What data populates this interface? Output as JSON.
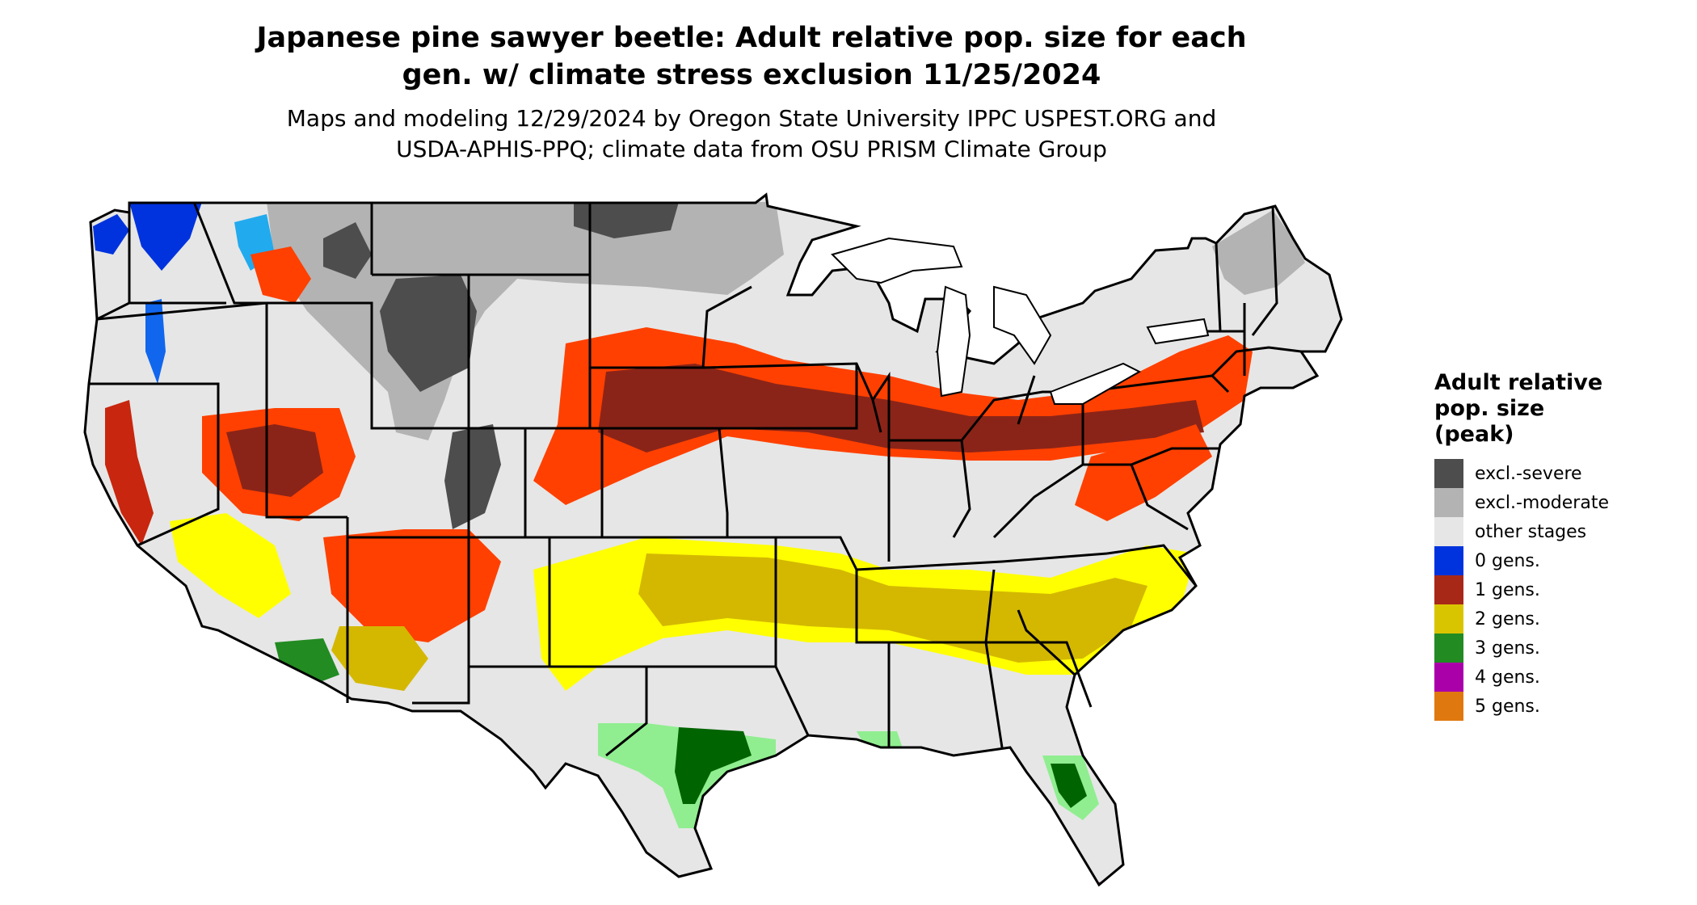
{
  "title": {
    "line1": "Japanese pine sawyer beetle: Adult relative pop. size for each",
    "line2": "gen. w/ climate stress exclusion 11/25/2024"
  },
  "subtitle": {
    "line1": "Maps and modeling 12/29/2024 by Oregon State University IPPC USPEST.ORG and",
    "line2": "USDA-APHIS-PPQ; climate data from OSU PRISM Climate Group"
  },
  "legend": {
    "title_lines": [
      "Adult relative",
      "pop. size",
      "(peak)"
    ],
    "items": [
      {
        "label": "excl.-severe",
        "color": "#4d4d4d"
      },
      {
        "label": "excl.-moderate",
        "color": "#b3b3b3"
      },
      {
        "label": "other stages",
        "color": "#e6e6e6"
      },
      {
        "label": "0 gens.",
        "color": "#0033dd"
      },
      {
        "label": "1 gens.",
        "color": "#a82818"
      },
      {
        "label": "2 gens.",
        "color": "#d9c400"
      },
      {
        "label": "3 gens.",
        "color": "#228b22"
      },
      {
        "label": "4 gens.",
        "color": "#aa00aa"
      },
      {
        "label": "5 gens.",
        "color": "#e07810"
      }
    ]
  },
  "map": {
    "region": "contiguous-us",
    "boundaries": "state-lines",
    "background_color": "#e6e6e6",
    "band_colors": {
      "excl_severe": "#4d4d4d",
      "excl_moderate": "#b3b3b3",
      "gen0": "#0033dd",
      "gen0_light": "#22aaee",
      "gen1_dark": "#8b2418",
      "gen1": "#ff4000",
      "gen2_dark": "#d4b800",
      "gen2": "#ffff00",
      "gen3_dark": "#006400",
      "gen3_light": "#90ee90",
      "gen4": "#cc00cc"
    }
  }
}
